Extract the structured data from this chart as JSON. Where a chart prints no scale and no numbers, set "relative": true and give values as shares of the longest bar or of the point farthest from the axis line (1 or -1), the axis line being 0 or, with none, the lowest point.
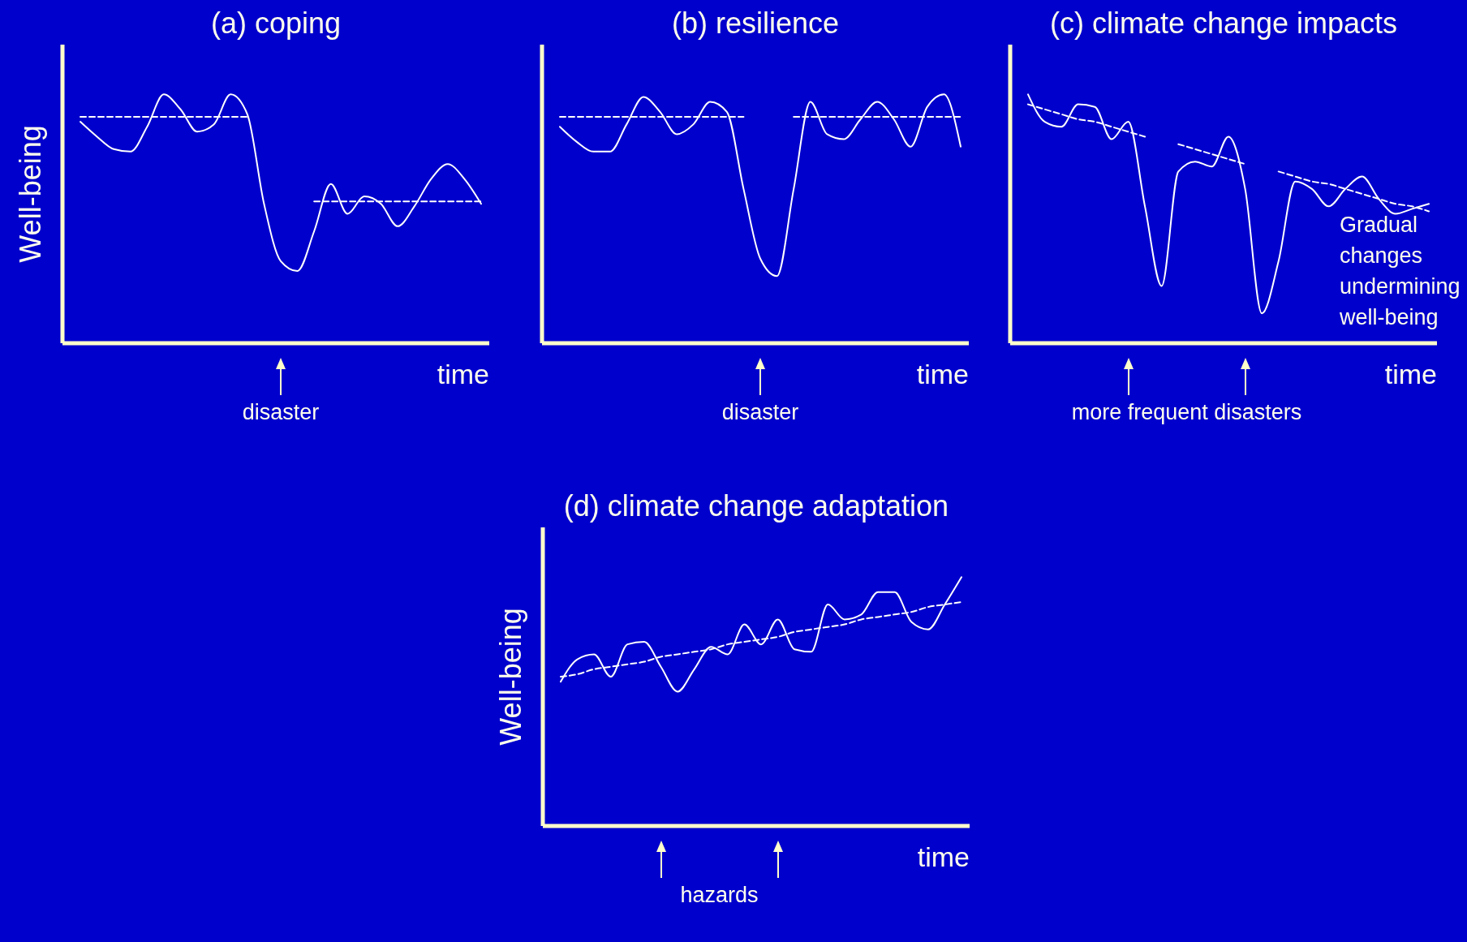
{
  "chart_data": [
    {
      "type": "line",
      "title": "(a) coping",
      "xlabel": "time",
      "ylabel": "Well-being",
      "relative": true,
      "annotations": [
        "disaster"
      ],
      "categories": [
        null,
        null,
        null,
        null,
        null,
        null,
        null,
        null,
        null,
        null,
        null,
        null,
        null,
        null,
        null,
        null,
        null,
        null,
        null,
        null,
        null,
        null,
        null,
        null,
        null
      ],
      "series": [
        {
          "color": "#ffffff",
          "line_style": "solid",
          "values": [
            0.89,
            0.83,
            0.78,
            0.77,
            0.87,
            1.0,
            0.94,
            0.85,
            0.88,
            1.0,
            0.92,
            0.56,
            0.33,
            0.29,
            0.45,
            0.64,
            0.52,
            0.59,
            0.56,
            0.47,
            0.55,
            0.66,
            0.72,
            0.66,
            0.56
          ]
        },
        {
          "color": "#ffffff",
          "line_style": "dashed",
          "values": [
            0.91,
            0.91,
            0.91,
            0.91,
            0.91,
            0.91,
            0.91,
            0.91,
            0.91,
            0.91,
            0.91,
            null,
            null,
            null,
            0.57,
            0.57,
            0.57,
            0.57,
            0.57,
            0.57,
            0.57,
            0.57,
            0.57,
            0.57,
            0.57
          ]
        }
      ]
    },
    {
      "type": "line",
      "title": "(b) resilience",
      "xlabel": "time",
      "relative": true,
      "annotations": [
        "disaster"
      ],
      "categories": [
        null,
        null,
        null,
        null,
        null,
        null,
        null,
        null,
        null,
        null,
        null,
        null,
        null,
        null,
        null,
        null,
        null,
        null,
        null,
        null,
        null,
        null,
        null,
        null,
        null
      ],
      "series": [
        {
          "color": "#ffffff",
          "line_style": "solid",
          "values": [
            0.87,
            0.81,
            0.77,
            0.77,
            0.88,
            0.99,
            0.93,
            0.84,
            0.88,
            0.97,
            0.93,
            0.62,
            0.34,
            0.27,
            0.62,
            0.97,
            0.84,
            0.82,
            0.9,
            0.97,
            0.9,
            0.79,
            0.95,
            1.0,
            0.79
          ]
        },
        {
          "color": "#ffffff",
          "line_style": "dashed",
          "values": [
            0.91,
            0.91,
            0.91,
            0.91,
            0.91,
            0.91,
            0.91,
            0.91,
            0.91,
            0.91,
            0.91,
            0.91,
            null,
            null,
            0.91,
            0.91,
            0.91,
            0.91,
            0.91,
            0.91,
            0.91,
            0.91,
            0.91,
            0.91,
            0.91
          ]
        }
      ]
    },
    {
      "type": "line",
      "title": "(c) climate change impacts",
      "xlabel": "time",
      "relative": true,
      "annotations": [
        "more frequent disasters",
        "Gradual changes undermining well-being"
      ],
      "categories": [
        null,
        null,
        null,
        null,
        null,
        null,
        null,
        null,
        null,
        null,
        null,
        null,
        null,
        null,
        null,
        null,
        null,
        null,
        null,
        null,
        null,
        null,
        null,
        null,
        null
      ],
      "series": [
        {
          "color": "#ffffff",
          "line_style": "solid",
          "values": [
            1.0,
            0.89,
            0.87,
            0.96,
            0.95,
            0.82,
            0.89,
            0.55,
            0.23,
            0.69,
            0.73,
            0.71,
            0.83,
            0.62,
            0.12,
            0.33,
            0.65,
            0.62,
            0.55,
            0.62,
            0.67,
            0.58,
            0.52,
            0.54,
            0.56
          ]
        },
        {
          "color": "#ffffff",
          "line_style": "dashed",
          "values": [
            0.96,
            0.94,
            0.92,
            0.9,
            0.89,
            0.87,
            0.85,
            0.83,
            null,
            0.8,
            0.78,
            0.76,
            0.74,
            0.72,
            null,
            0.69,
            0.67,
            0.65,
            0.64,
            0.62,
            0.6,
            0.58,
            0.56,
            0.55,
            0.53
          ]
        }
      ]
    },
    {
      "type": "line",
      "title": "(d) climate change adaptation",
      "xlabel": "time",
      "ylabel": "Well-being",
      "relative": true,
      "annotations": [
        "hazards"
      ],
      "categories": [
        null,
        null,
        null,
        null,
        null,
        null,
        null,
        null,
        null,
        null,
        null,
        null,
        null,
        null,
        null,
        null,
        null,
        null,
        null,
        null,
        null,
        null,
        null,
        null,
        null
      ],
      "series": [
        {
          "color": "#ffffff",
          "line_style": "solid",
          "values": [
            0.58,
            0.67,
            0.69,
            0.6,
            0.73,
            0.74,
            0.64,
            0.54,
            0.63,
            0.72,
            0.69,
            0.81,
            0.73,
            0.83,
            0.71,
            0.7,
            0.89,
            0.83,
            0.85,
            0.94,
            0.94,
            0.82,
            0.79,
            0.89,
            1.0
          ]
        },
        {
          "color": "#ffffff",
          "line_style": "dashed",
          "values": [
            0.6,
            0.61,
            0.63,
            0.64,
            0.65,
            0.66,
            0.68,
            0.69,
            0.7,
            0.71,
            0.73,
            0.74,
            0.75,
            0.76,
            0.78,
            0.79,
            0.8,
            0.81,
            0.83,
            0.84,
            0.85,
            0.86,
            0.88,
            0.89,
            0.9
          ]
        }
      ]
    }
  ]
}
